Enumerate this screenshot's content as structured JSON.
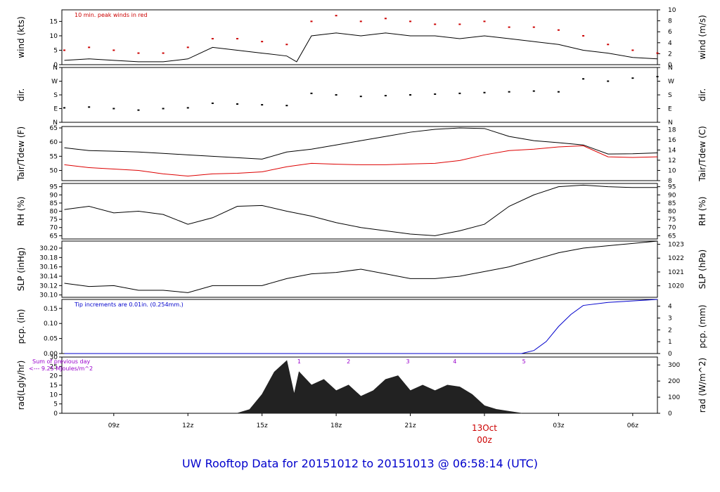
{
  "footer": "UW Rooftop Data for 20151012  to  20151013 @ 06:58:14  (UTC)",
  "date_label": "13Oct",
  "colors": {
    "text": "#000000",
    "accent_red": "#cc0000",
    "blue": "#0000cc",
    "purple": "#9900cc"
  },
  "chart_data": [
    {
      "type": "line",
      "panel": "wind",
      "left_axis": {
        "label": "wind (kts)",
        "ticks": [
          "0",
          "5",
          "10",
          "15"
        ],
        "range": [
          0,
          19
        ]
      },
      "right_axis": {
        "label": "wind (m/s)",
        "ticks": [
          "0",
          "2",
          "4",
          "6",
          "8",
          "10"
        ],
        "range": [
          0,
          10
        ]
      },
      "annotation": "10 min. peak winds in red",
      "series": [
        {
          "name": "",
          "color": "#000000",
          "x": [
            7,
            8,
            9,
            10,
            11,
            12,
            13,
            14,
            15,
            16,
            16.4,
            17,
            18,
            19,
            20,
            21,
            22,
            23,
            24,
            25,
            26,
            27,
            28,
            29,
            30,
            31
          ],
          "y": [
            1.5,
            2,
            1.5,
            1,
            1,
            2,
            6,
            5,
            4,
            3,
            1,
            10,
            11,
            10,
            11,
            10,
            10,
            9,
            10,
            9,
            8,
            7,
            5,
            4,
            2.5,
            2
          ]
        },
        {
          "name": "",
          "color": "#cc0000",
          "style": "dots",
          "x": [
            7,
            8,
            9,
            10,
            11,
            12,
            13,
            14,
            15,
            16,
            17,
            18,
            19,
            20,
            21,
            22,
            23,
            24,
            25,
            26,
            27,
            28,
            29,
            30,
            31
          ],
          "y": [
            5,
            6,
            5,
            4,
            4,
            6,
            9,
            9,
            8,
            7,
            15,
            17,
            15,
            16,
            15,
            14,
            14,
            15,
            13,
            13,
            12,
            10,
            7,
            5,
            4
          ]
        }
      ]
    },
    {
      "type": "scatter",
      "panel": "dir",
      "left_axis": {
        "label": "dir.",
        "ticks": [
          "N",
          "E",
          "S",
          "W",
          "N"
        ],
        "range": [
          0,
          360
        ]
      },
      "right_axis": {
        "label": "dir.",
        "ticks": [
          "N",
          "E",
          "S",
          "W",
          "N"
        ],
        "range": [
          0,
          360
        ]
      },
      "series": [
        {
          "name": "",
          "color": "#000000",
          "x": [
            7,
            8,
            9,
            10,
            11,
            12,
            13,
            14,
            15,
            16,
            17,
            18,
            19,
            20,
            21,
            22,
            23,
            24,
            25,
            26,
            27,
            28,
            29,
            30,
            31
          ],
          "y": [
            95,
            100,
            90,
            80,
            90,
            95,
            125,
            120,
            115,
            110,
            190,
            180,
            170,
            175,
            180,
            185,
            190,
            195,
            200,
            205,
            200,
            285,
            270,
            290,
            300
          ]
        }
      ]
    },
    {
      "type": "line",
      "panel": "temp",
      "left_axis": {
        "label": "Tair/Tdew (F)",
        "ticks": [
          "50",
          "55",
          "60",
          "65"
        ],
        "range": [
          46.4,
          65.5
        ]
      },
      "right_axis": {
        "label": "Tair/Tdew (C)",
        "ticks": [
          "8",
          "10",
          "12",
          "14",
          "16",
          "18"
        ],
        "range": [
          8,
          18.6
        ]
      },
      "series": [
        {
          "name": "",
          "color": "#000000",
          "x": [
            7,
            8,
            9,
            10,
            11,
            12,
            13,
            14,
            15,
            16,
            17,
            18,
            19,
            20,
            21,
            22,
            23,
            24,
            25,
            26,
            27,
            28,
            29,
            30,
            31
          ],
          "y": [
            58,
            57,
            56.8,
            56.5,
            56,
            55.5,
            55,
            54.5,
            54,
            56.5,
            57.5,
            59,
            60.5,
            62,
            63.5,
            64.5,
            65,
            64.8,
            62,
            60.5,
            59.8,
            59,
            55.8,
            55.9,
            56.2
          ]
        },
        {
          "name": "",
          "color": "#dd0000",
          "x": [
            7,
            8,
            9,
            10,
            11,
            12,
            13,
            14,
            15,
            16,
            17,
            18,
            19,
            20,
            21,
            22,
            23,
            24,
            25,
            26,
            27,
            28,
            29,
            30,
            31
          ],
          "y": [
            52,
            51,
            50.5,
            50,
            48.8,
            48,
            48.8,
            49,
            49.5,
            51.3,
            52.5,
            52.2,
            52,
            52,
            52.3,
            52.5,
            53.5,
            55.5,
            57,
            57.5,
            58.3,
            58.7,
            54.8,
            54.6,
            54.8
          ]
        }
      ]
    },
    {
      "type": "line",
      "panel": "rh",
      "left_axis": {
        "label": "RH (%)",
        "ticks": [
          "65",
          "70",
          "75",
          "80",
          "85",
          "90",
          "95"
        ],
        "range": [
          63,
          97
        ]
      },
      "right_axis": {
        "label": "RH (%)",
        "ticks": [
          "65",
          "70",
          "75",
          "80",
          "85",
          "90",
          "95"
        ],
        "range": [
          63,
          97
        ]
      },
      "series": [
        {
          "name": "",
          "color": "#000000",
          "x": [
            7,
            8,
            9,
            10,
            11,
            12,
            13,
            14,
            15,
            16,
            17,
            18,
            19,
            20,
            21,
            22,
            23,
            24,
            25,
            26,
            27,
            28,
            29,
            30,
            31
          ],
          "y": [
            81,
            83,
            79,
            80,
            78,
            72,
            76,
            83,
            83.5,
            80,
            77,
            73,
            70,
            68,
            66,
            65,
            68,
            72,
            83,
            90,
            95,
            96,
            95,
            94.5,
            94.5
          ]
        }
      ]
    },
    {
      "type": "line",
      "panel": "slp",
      "left_axis": {
        "label": "SLP (inHg)",
        "ticks": [
          "30.10",
          "30.12",
          "30.14",
          "30.16",
          "30.18",
          "30.20"
        ],
        "range": [
          30.095,
          30.215
        ]
      },
      "right_axis": {
        "label": "SLP (hPa)",
        "ticks": [
          "1020",
          "1021",
          "1022",
          "1023"
        ],
        "range": [
          1019.17,
          1023.23
        ]
      },
      "series": [
        {
          "name": "",
          "color": "#000000",
          "x": [
            7,
            8,
            9,
            10,
            11,
            12,
            13,
            14,
            15,
            16,
            17,
            18,
            19,
            20,
            21,
            22,
            23,
            24,
            25,
            26,
            27,
            28,
            29,
            30,
            31
          ],
          "y": [
            30.125,
            30.118,
            30.12,
            30.11,
            30.11,
            30.105,
            30.12,
            30.12,
            30.12,
            30.135,
            30.145,
            30.148,
            30.155,
            30.145,
            30.135,
            30.135,
            30.14,
            30.15,
            30.16,
            30.175,
            30.19,
            30.2,
            30.205,
            30.21,
            30.215
          ]
        }
      ]
    },
    {
      "type": "line",
      "panel": "pcp",
      "left_axis": {
        "label": "pcp. (in)",
        "ticks": [
          "0.00",
          "0.05",
          "0.10",
          "0.15"
        ],
        "range": [
          0,
          0.18
        ]
      },
      "right_axis": {
        "label": "pcp. (mm)",
        "ticks": [
          "0",
          "1",
          "2",
          "3",
          "4"
        ],
        "range": [
          0,
          4.57
        ]
      },
      "annotation": "Tip increments are 0.01in. (0.254mm.)",
      "series": [
        {
          "name": "",
          "color": "#0000cc",
          "x": [
            7,
            25.5,
            26,
            26.5,
            27,
            27.5,
            28,
            29,
            30,
            31
          ],
          "y": [
            0,
            0,
            0.01,
            0.04,
            0.09,
            0.13,
            0.16,
            0.17,
            0.175,
            0.18
          ]
        }
      ]
    },
    {
      "type": "area",
      "panel": "rad",
      "left_axis": {
        "label": "rad(Lgly/hr)",
        "ticks": [
          "0",
          "5",
          "10",
          "15",
          "20",
          "25",
          "30"
        ],
        "range": [
          0,
          30
        ]
      },
      "right_axis": {
        "label": "rad (W/m^2)",
        "ticks": [
          "0",
          "100",
          "200",
          "300"
        ],
        "range": [
          0,
          349
        ]
      },
      "annotations": [
        "Sum of previous day",
        "<--- 9.25 MJoules/m^2"
      ],
      "hour_marks": [
        "1",
        "2",
        "3",
        "4",
        "5"
      ],
      "series": [
        {
          "name": "",
          "color": "#222222",
          "x": [
            14,
            14.5,
            15,
            15.5,
            16,
            16.3,
            16.5,
            17,
            17.5,
            18,
            18.5,
            19,
            19.5,
            20,
            20.5,
            21,
            21.5,
            22,
            22.5,
            23,
            23.5,
            24,
            24.5,
            25,
            25.5
          ],
          "y": [
            0,
            2,
            10,
            22,
            28,
            10,
            22,
            15,
            18,
            12,
            15,
            9,
            12,
            18,
            20,
            12,
            15,
            12,
            15,
            14,
            10,
            4,
            2,
            1,
            0
          ]
        }
      ]
    },
    {
      "type": "axis",
      "panel": "time",
      "x_ticks": [
        "09z",
        "12z",
        "15z",
        "18z",
        "21z",
        "00z",
        "03z",
        "06z"
      ],
      "x_range": [
        6.9,
        31.0
      ]
    }
  ]
}
